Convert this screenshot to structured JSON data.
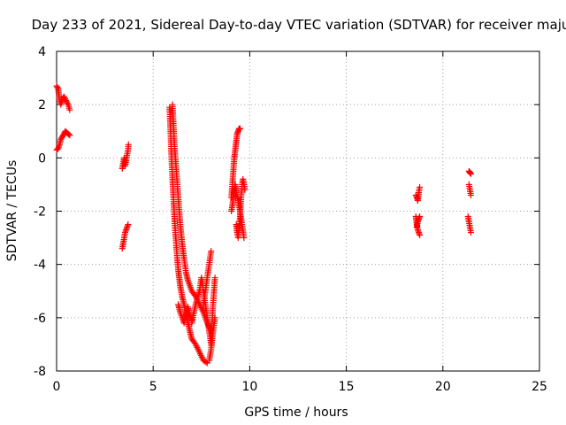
{
  "chart_data": {
    "type": "scatter",
    "title": "Day 233 of 2021, Sidereal Day-to-day VTEC variation (SDTVAR) for receiver maju",
    "xlabel": "GPS time / hours",
    "ylabel": "SDTVAR / TECUs",
    "xlim": [
      0,
      25
    ],
    "ylim": [
      -8,
      4
    ],
    "xticks": [
      0,
      5,
      10,
      15,
      20,
      25
    ],
    "yticks": [
      -8,
      -6,
      -4,
      -2,
      0,
      2,
      4
    ],
    "xtick_labels": [
      "0",
      "5",
      "10",
      "15",
      "20",
      "25"
    ],
    "ytick_labels": [
      "-8",
      "-6",
      "-4",
      "-2",
      "0",
      "2",
      "4"
    ],
    "grid": true,
    "marker": "+",
    "marker_color": "#ff0000",
    "segments": [
      {
        "x": [
          0.0,
          0.08,
          0.15,
          0.22,
          0.3,
          0.38,
          0.45,
          0.52,
          0.6,
          0.68
        ],
        "y": [
          2.7,
          2.6,
          2.2,
          2.0,
          2.2,
          2.3,
          2.2,
          2.1,
          2.0,
          1.8
        ]
      },
      {
        "x": [
          0.0,
          0.08,
          0.15,
          0.22,
          0.3,
          0.38,
          0.45,
          0.52,
          0.6,
          0.68
        ],
        "y": [
          0.3,
          0.35,
          0.5,
          0.7,
          0.8,
          0.9,
          1.0,
          0.95,
          0.9,
          0.85
        ]
      },
      {
        "x": [
          3.4,
          3.45,
          3.5,
          3.55,
          3.6,
          3.65,
          3.7,
          3.72
        ],
        "y": [
          -0.4,
          -0.2,
          0.0,
          -0.3,
          -0.1,
          0.1,
          0.3,
          0.5
        ]
      },
      {
        "x": [
          3.4,
          3.45,
          3.5,
          3.55,
          3.6,
          3.65,
          3.7
        ],
        "y": [
          -3.4,
          -3.2,
          -3.0,
          -2.8,
          -2.7,
          -2.6,
          -2.5
        ]
      },
      {
        "x": [
          5.85,
          5.9,
          5.95,
          6.0,
          6.05,
          6.1,
          6.15,
          6.2,
          6.25,
          6.3,
          6.35,
          6.4,
          6.5,
          6.6,
          6.7,
          6.8,
          6.9,
          7.0,
          7.2,
          7.4,
          7.6,
          7.8
        ],
        "y": [
          1.9,
          1.0,
          0.0,
          -0.8,
          -1.5,
          -2.2,
          -2.8,
          -3.3,
          -3.8,
          -4.2,
          -4.5,
          -4.8,
          -5.2,
          -5.5,
          -5.8,
          -6.2,
          -6.5,
          -6.8,
          -7.0,
          -7.3,
          -7.6,
          -7.7
        ]
      },
      {
        "x": [
          6.0,
          6.1,
          6.2,
          6.3,
          6.4,
          6.5,
          6.6,
          6.7,
          6.8,
          6.9,
          7.0,
          7.2,
          7.4,
          7.6,
          7.8,
          8.0
        ],
        "y": [
          2.0,
          0.5,
          -0.5,
          -1.5,
          -2.5,
          -3.2,
          -3.8,
          -4.3,
          -4.6,
          -4.8,
          -5.0,
          -5.2,
          -5.5,
          -5.8,
          -6.2,
          -6.5
        ]
      },
      {
        "x": [
          6.3,
          6.4,
          6.5,
          6.6,
          6.7,
          6.8,
          6.9,
          7.0
        ],
        "y": [
          -5.5,
          -5.8,
          -6.0,
          -6.2,
          -5.9,
          -5.6,
          -5.9,
          -6.1
        ]
      },
      {
        "x": [
          7.0,
          7.2,
          7.4,
          7.5,
          7.6,
          7.7,
          7.8,
          7.9,
          8.0,
          8.1,
          8.2
        ],
        "y": [
          -6.2,
          -5.5,
          -5.0,
          -4.5,
          -5.0,
          -5.5,
          -6.0,
          -6.5,
          -7.0,
          -5.5,
          -4.5
        ]
      },
      {
        "x": [
          7.6,
          7.7,
          7.8,
          7.9,
          8.0
        ],
        "y": [
          -5.5,
          -5.0,
          -4.5,
          -4.0,
          -3.5
        ]
      },
      {
        "x": [
          7.9,
          8.0,
          8.1,
          8.2
        ],
        "y": [
          -7.6,
          -7.2,
          -6.5,
          -6.0
        ]
      },
      {
        "x": [
          9.05,
          9.1,
          9.15,
          9.2,
          9.25,
          9.3,
          9.35,
          9.4,
          9.45,
          9.5
        ],
        "y": [
          -1.5,
          -1.0,
          -0.5,
          0.0,
          0.3,
          0.6,
          0.9,
          1.0,
          1.1,
          1.1
        ]
      },
      {
        "x": [
          9.05,
          9.1,
          9.15,
          9.2,
          9.25,
          9.3,
          9.4,
          9.5,
          9.6,
          9.7
        ],
        "y": [
          -2.0,
          -1.8,
          -1.5,
          -1.2,
          -1.0,
          -1.3,
          -1.6,
          -2.0,
          -2.5,
          -3.0
        ]
      },
      {
        "x": [
          9.3,
          9.35,
          9.4,
          9.45,
          9.5,
          9.55,
          9.6,
          9.65,
          9.7,
          9.75
        ],
        "y": [
          -2.5,
          -2.8,
          -3.0,
          -2.6,
          -2.2,
          -1.5,
          -1.0,
          -0.8,
          -1.0,
          -1.2
        ]
      },
      {
        "x": [
          18.6,
          18.65,
          18.7,
          18.75,
          18.8
        ],
        "y": [
          -2.2,
          -2.5,
          -2.7,
          -2.8,
          -2.9
        ]
      },
      {
        "x": [
          18.6,
          18.65,
          18.7,
          18.75,
          18.8
        ],
        "y": [
          -1.4,
          -1.5,
          -1.6,
          -1.3,
          -1.1
        ]
      },
      {
        "x": [
          18.65,
          18.7,
          18.75,
          18.8
        ],
        "y": [
          -2.6,
          -2.4,
          -2.3,
          -2.2
        ]
      },
      {
        "x": [
          21.3,
          21.35,
          21.4,
          21.45
        ],
        "y": [
          -2.2,
          -2.4,
          -2.6,
          -2.8
        ]
      },
      {
        "x": [
          21.35,
          21.4,
          21.45
        ],
        "y": [
          -1.0,
          -1.2,
          -1.4
        ]
      },
      {
        "x": [
          21.35,
          21.4,
          21.45
        ],
        "y": [
          -0.5,
          -0.55,
          -0.6
        ]
      }
    ]
  }
}
